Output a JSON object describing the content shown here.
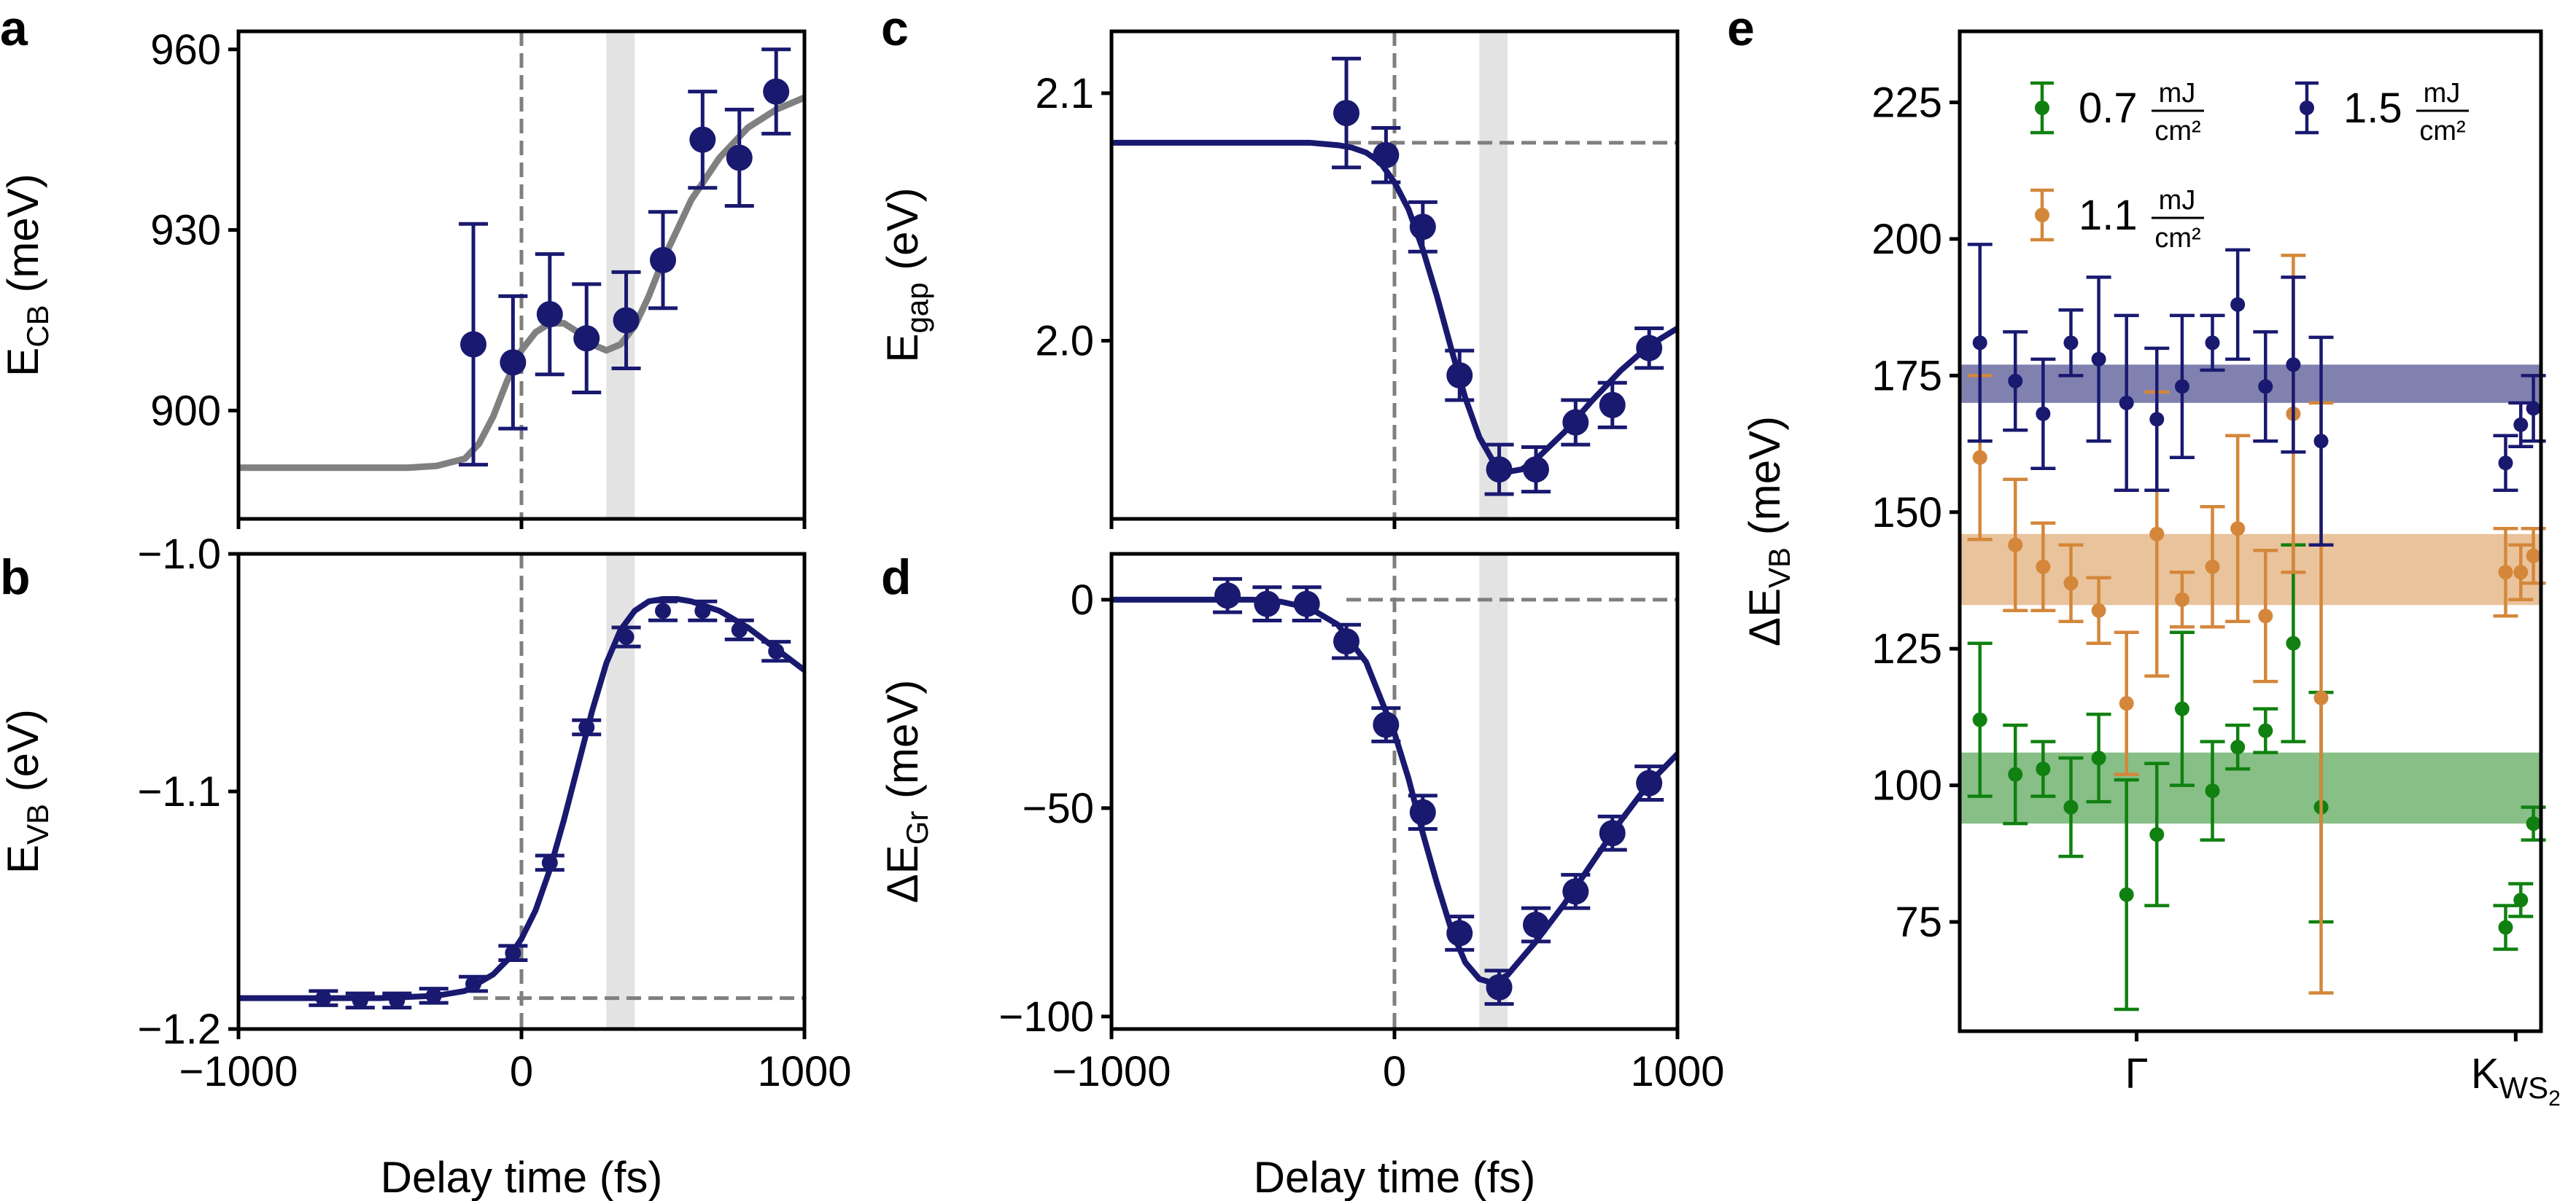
{
  "colors": {
    "navy": "#191970",
    "gray": "#808080",
    "green": "#108010",
    "orange": "#d4873a",
    "shade": "#e3e3e3"
  },
  "chart_data": [
    {
      "panel": "a",
      "type": "scatter",
      "xlabel": "Delay time (fs)",
      "ylabel_main": "E",
      "ylabel_sub": "CB",
      "ylabel_unit": " (meV)",
      "xlim": [
        -1000,
        1000
      ],
      "ylim": [
        882,
        963
      ],
      "yticks": [
        900,
        930,
        960
      ],
      "ytick_labels": [
        "900",
        "930",
        "960"
      ],
      "xticks": [
        -1000,
        0,
        1000
      ],
      "vline": 0,
      "shade": [
        300,
        400
      ],
      "points": [
        {
          "x": -170,
          "y": 911,
          "err": 20
        },
        {
          "x": -30,
          "y": 908,
          "err": 11
        },
        {
          "x": 100,
          "y": 916,
          "err": 10
        },
        {
          "x": 230,
          "y": 912,
          "err": 9
        },
        {
          "x": 370,
          "y": 915,
          "err": 8
        },
        {
          "x": 500,
          "y": 925,
          "err": 8
        },
        {
          "x": 640,
          "y": 945,
          "err": 8
        },
        {
          "x": 770,
          "y": 942,
          "err": 8
        },
        {
          "x": 900,
          "y": 953,
          "err": 7
        }
      ],
      "fit": {
        "color": "gray",
        "x": [
          -1000,
          -600,
          -400,
          -300,
          -200,
          -150,
          -100,
          -50,
          0,
          50,
          100,
          150,
          200,
          250,
          300,
          350,
          400,
          450,
          500,
          600,
          700,
          800,
          900,
          1000
        ],
        "y": [
          890.5,
          890.5,
          890.5,
          890.8,
          892,
          894.5,
          899,
          905,
          910,
          913,
          914.5,
          914.5,
          913,
          911,
          910,
          911,
          914,
          919,
          925,
          935,
          942,
          947,
          950,
          952
        ]
      }
    },
    {
      "panel": "b",
      "type": "scatter",
      "xlabel": "Delay time (fs)",
      "ylabel_main": "E",
      "ylabel_sub": "VB",
      "ylabel_unit": " (eV)",
      "xlim": [
        -1000,
        1000
      ],
      "ylim": [
        -1.2,
        -1.0
      ],
      "yticks": [
        -1.2,
        -1.1,
        -1.0
      ],
      "ytick_labels": [
        "−1.2",
        "−1.1",
        "−1.0"
      ],
      "xticks": [
        -1000,
        0,
        1000
      ],
      "xtick_labels": [
        "−1000",
        "0",
        "1000"
      ],
      "vline": 0,
      "shade": [
        300,
        400
      ],
      "hline": -1.187,
      "points": [
        {
          "x": -700,
          "y": -1.187,
          "err": 0.003
        },
        {
          "x": -570,
          "y": -1.188,
          "err": 0.003
        },
        {
          "x": -440,
          "y": -1.188,
          "err": 0.003
        },
        {
          "x": -310,
          "y": -1.186,
          "err": 0.003
        },
        {
          "x": -170,
          "y": -1.181,
          "err": 0.003
        },
        {
          "x": -30,
          "y": -1.168,
          "err": 0.003
        },
        {
          "x": 100,
          "y": -1.13,
          "err": 0.003
        },
        {
          "x": 230,
          "y": -1.073,
          "err": 0.003
        },
        {
          "x": 370,
          "y": -1.035,
          "err": 0.004
        },
        {
          "x": 500,
          "y": -1.024,
          "err": 0.004
        },
        {
          "x": 640,
          "y": -1.024,
          "err": 0.004
        },
        {
          "x": 770,
          "y": -1.032,
          "err": 0.004
        },
        {
          "x": 900,
          "y": -1.041,
          "err": 0.004
        }
      ],
      "fit": {
        "color": "navy",
        "x": [
          -1000,
          -500,
          -300,
          -200,
          -100,
          -50,
          0,
          50,
          100,
          150,
          200,
          250,
          300,
          350,
          400,
          450,
          500,
          550,
          600,
          700,
          800,
          900,
          1000
        ],
        "y": [
          -1.187,
          -1.187,
          -1.186,
          -1.184,
          -1.177,
          -1.171,
          -1.162,
          -1.15,
          -1.133,
          -1.112,
          -1.089,
          -1.066,
          -1.046,
          -1.032,
          -1.024,
          -1.02,
          -1.019,
          -1.019,
          -1.02,
          -1.024,
          -1.031,
          -1.04,
          -1.049
        ]
      }
    },
    {
      "panel": "c",
      "type": "scatter",
      "xlabel": "Delay time (fs)",
      "ylabel_main": "E",
      "ylabel_sub": "gap",
      "ylabel_unit": " (eV)",
      "xlim": [
        -1000,
        1000
      ],
      "ylim": [
        1.928,
        2.125
      ],
      "yticks": [
        2.0,
        2.1
      ],
      "ytick_labels": [
        "2.0",
        "2.1"
      ],
      "xticks": [
        -1000,
        0,
        1000
      ],
      "vline": 0,
      "shade": [
        300,
        400
      ],
      "hline": 2.08,
      "points": [
        {
          "x": -170,
          "y": 2.092,
          "err": 0.022
        },
        {
          "x": -30,
          "y": 2.075,
          "err": 0.011
        },
        {
          "x": 100,
          "y": 2.046,
          "err": 0.01
        },
        {
          "x": 230,
          "y": 1.986,
          "err": 0.01
        },
        {
          "x": 370,
          "y": 1.948,
          "err": 0.01
        },
        {
          "x": 500,
          "y": 1.948,
          "err": 0.009
        },
        {
          "x": 640,
          "y": 1.967,
          "err": 0.009
        },
        {
          "x": 770,
          "y": 1.974,
          "err": 0.009
        },
        {
          "x": 900,
          "y": 1.997,
          "err": 0.008
        }
      ],
      "fit": {
        "color": "navy",
        "x": [
          -1000,
          -300,
          -200,
          -150,
          -100,
          -50,
          0,
          50,
          100,
          150,
          200,
          250,
          300,
          350,
          400,
          450,
          500,
          600,
          700,
          800,
          900,
          1000
        ],
        "y": [
          2.08,
          2.08,
          2.079,
          2.078,
          2.076,
          2.072,
          2.064,
          2.053,
          2.037,
          2.018,
          1.997,
          1.977,
          1.961,
          1.951,
          1.947,
          1.948,
          1.952,
          1.963,
          1.976,
          1.988,
          1.998,
          2.005
        ]
      }
    },
    {
      "panel": "d",
      "type": "scatter",
      "xlabel": "Delay time (fs)",
      "ylabel_main": "ΔE",
      "ylabel_sub": "Gr",
      "ylabel_unit": " (meV)",
      "xlim": [
        -1000,
        1000
      ],
      "ylim": [
        -103,
        11
      ],
      "yticks": [
        -100,
        -50,
        0
      ],
      "ytick_labels": [
        "−100",
        "−50",
        "0"
      ],
      "xticks": [
        -1000,
        0,
        1000
      ],
      "xtick_labels": [
        "−1000",
        "0",
        "1000"
      ],
      "vline": 0,
      "shade": [
        300,
        400
      ],
      "hline": 0,
      "points": [
        {
          "x": -590,
          "y": 1,
          "err": 4
        },
        {
          "x": -450,
          "y": -1,
          "err": 4
        },
        {
          "x": -310,
          "y": -1,
          "err": 4
        },
        {
          "x": -170,
          "y": -10,
          "err": 4
        },
        {
          "x": -30,
          "y": -30,
          "err": 4
        },
        {
          "x": 100,
          "y": -51,
          "err": 4
        },
        {
          "x": 230,
          "y": -80,
          "err": 4
        },
        {
          "x": 370,
          "y": -93,
          "err": 4
        },
        {
          "x": 500,
          "y": -78,
          "err": 4
        },
        {
          "x": 640,
          "y": -70,
          "err": 4
        },
        {
          "x": 770,
          "y": -56,
          "err": 4
        },
        {
          "x": 900,
          "y": -44,
          "err": 4
        }
      ],
      "fit": {
        "color": "navy",
        "x": [
          -1000,
          -500,
          -400,
          -300,
          -200,
          -100,
          0,
          50,
          100,
          150,
          200,
          250,
          300,
          350,
          400,
          450,
          500,
          600,
          700,
          800,
          900,
          1000
        ],
        "y": [
          0,
          0,
          -0.5,
          -2,
          -6,
          -15,
          -32,
          -43,
          -56,
          -68,
          -79,
          -87,
          -91,
          -92,
          -90,
          -86,
          -82,
          -73,
          -63,
          -53,
          -44,
          -37
        ]
      }
    },
    {
      "panel": "e",
      "type": "scatter",
      "ylabel_main": "ΔE",
      "ylabel_sub": "VB",
      "ylabel_unit": " (meV)",
      "ylim": [
        55,
        238
      ],
      "yticks": [
        75,
        100,
        125,
        150,
        175,
        200,
        225
      ],
      "ytick_labels": [
        "75",
        "100",
        "125",
        "150",
        "175",
        "200",
        "225"
      ],
      "xlim": [
        0,
        23
      ],
      "xticks": [
        7,
        22
      ],
      "xtick_labels": [
        "Γ",
        "K"
      ],
      "xtick_k_sub": "WS",
      "xtick_k_subsub": "2",
      "legend": [
        {
          "value": "0.7",
          "num": "mJ",
          "den": "cm²",
          "color": "green"
        },
        {
          "value": "1.5",
          "num": "mJ",
          "den": "cm²",
          "color": "navy"
        },
        {
          "value": "1.1",
          "num": "mJ",
          "den": "cm²",
          "color": "orange"
        }
      ],
      "bands": [
        {
          "color": "navy",
          "y1": 170,
          "y2": 177
        },
        {
          "color": "orange",
          "y1": 133,
          "y2": 146
        },
        {
          "color": "green",
          "y1": 93,
          "y2": 106
        }
      ],
      "series": [
        {
          "name": "0.7 mJ/cm²",
          "color": "green",
          "points": [
            {
              "x": 0.8,
              "y": 112,
              "err": 14
            },
            {
              "x": 2.2,
              "y": 102,
              "err": 9
            },
            {
              "x": 3.3,
              "y": 103,
              "err": 5
            },
            {
              "x": 4.4,
              "y": 96,
              "err": 9
            },
            {
              "x": 5.5,
              "y": 105,
              "err": 8
            },
            {
              "x": 6.6,
              "y": 80,
              "err": 21
            },
            {
              "x": 7.8,
              "y": 91,
              "err": 13
            },
            {
              "x": 8.8,
              "y": 114,
              "err": 14
            },
            {
              "x": 10.0,
              "y": 99,
              "err": 9
            },
            {
              "x": 11.0,
              "y": 107,
              "err": 4
            },
            {
              "x": 12.1,
              "y": 110,
              "err": 4
            },
            {
              "x": 13.2,
              "y": 126,
              "err": 18
            },
            {
              "x": 14.3,
              "y": 96,
              "err": 21
            },
            {
              "x": 21.6,
              "y": 74,
              "err": 4
            },
            {
              "x": 22.2,
              "y": 79,
              "err": 3
            },
            {
              "x": 22.7,
              "y": 93,
              "err": 3
            }
          ]
        },
        {
          "name": "1.1 mJ/cm²",
          "color": "orange",
          "points": [
            {
              "x": 0.8,
              "y": 160,
              "err": 15
            },
            {
              "x": 2.2,
              "y": 144,
              "err": 12
            },
            {
              "x": 3.3,
              "y": 140,
              "err": 8
            },
            {
              "x": 4.4,
              "y": 137,
              "err": 7
            },
            {
              "x": 5.5,
              "y": 132,
              "err": 6
            },
            {
              "x": 6.6,
              "y": 115,
              "err": 13
            },
            {
              "x": 7.8,
              "y": 146,
              "err": 26
            },
            {
              "x": 8.8,
              "y": 134,
              "err": 5
            },
            {
              "x": 10.0,
              "y": 140,
              "err": 11
            },
            {
              "x": 11.0,
              "y": 147,
              "err": 17
            },
            {
              "x": 12.1,
              "y": 131,
              "err": 12
            },
            {
              "x": 13.2,
              "y": 168,
              "err": 29
            },
            {
              "x": 14.3,
              "y": 116,
              "err": 54
            },
            {
              "x": 21.6,
              "y": 139,
              "err": 8
            },
            {
              "x": 22.2,
              "y": 139,
              "err": 5
            },
            {
              "x": 22.7,
              "y": 142,
              "err": 5
            }
          ]
        },
        {
          "name": "1.5 mJ/cm²",
          "color": "navy",
          "points": [
            {
              "x": 0.8,
              "y": 181,
              "err": 18
            },
            {
              "x": 2.2,
              "y": 174,
              "err": 9
            },
            {
              "x": 3.3,
              "y": 168,
              "err": 10
            },
            {
              "x": 4.4,
              "y": 181,
              "err": 6
            },
            {
              "x": 5.5,
              "y": 178,
              "err": 15
            },
            {
              "x": 6.6,
              "y": 170,
              "err": 16
            },
            {
              "x": 7.8,
              "y": 167,
              "err": 13
            },
            {
              "x": 8.8,
              "y": 173,
              "err": 13
            },
            {
              "x": 10.0,
              "y": 181,
              "err": 5
            },
            {
              "x": 11.0,
              "y": 188,
              "err": 10
            },
            {
              "x": 12.1,
              "y": 173,
              "err": 10
            },
            {
              "x": 13.2,
              "y": 177,
              "err": 16
            },
            {
              "x": 14.3,
              "y": 163,
              "err": 19
            },
            {
              "x": 21.6,
              "y": 159,
              "err": 5
            },
            {
              "x": 22.2,
              "y": 166,
              "err": 4
            },
            {
              "x": 22.7,
              "y": 169,
              "err": 6
            }
          ]
        }
      ]
    }
  ]
}
